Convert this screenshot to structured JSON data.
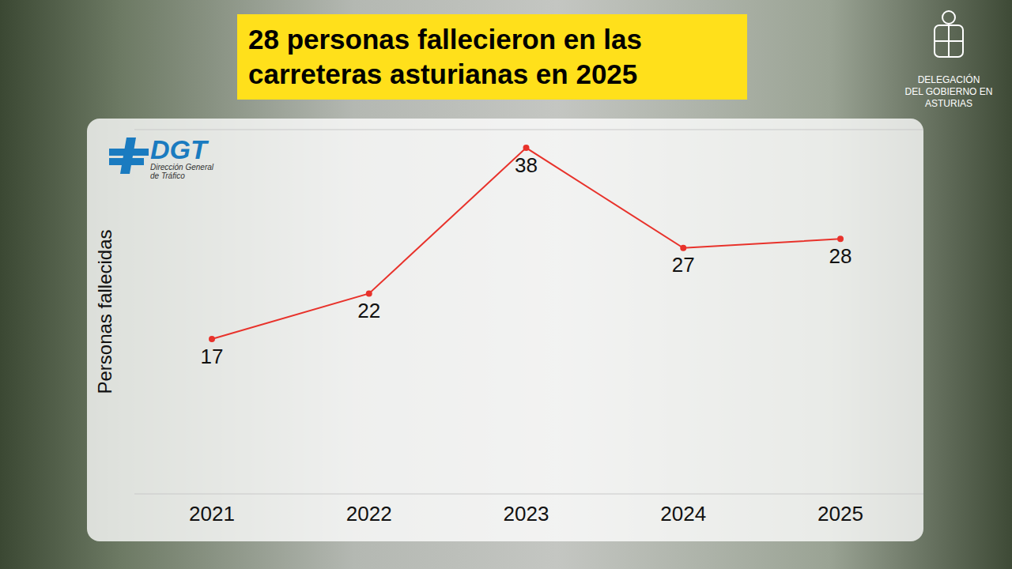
{
  "chart_data": {
    "type": "line",
    "title": "28 personas fallecieron en las carreteras asturianas en 2025",
    "ylabel": "Personas fallecidas",
    "categories": [
      "2021",
      "2022",
      "2023",
      "2024",
      "2025"
    ],
    "values": [
      17,
      22,
      38,
      27,
      28
    ],
    "color": "#e8322b",
    "marker": "circle",
    "ylim": [
      0,
      40
    ],
    "yticks": [
      0,
      10,
      20,
      30,
      40
    ],
    "grid": true,
    "data_labels": true,
    "tick_labels": "x"
  },
  "logo": {
    "name": "DGT",
    "lines": [
      "Dirección General",
      "de Tráfico"
    ]
  },
  "publisher": [
    "DELEGACIÓN",
    "DEL GOBIERNO EN",
    "ASTURIAS"
  ]
}
